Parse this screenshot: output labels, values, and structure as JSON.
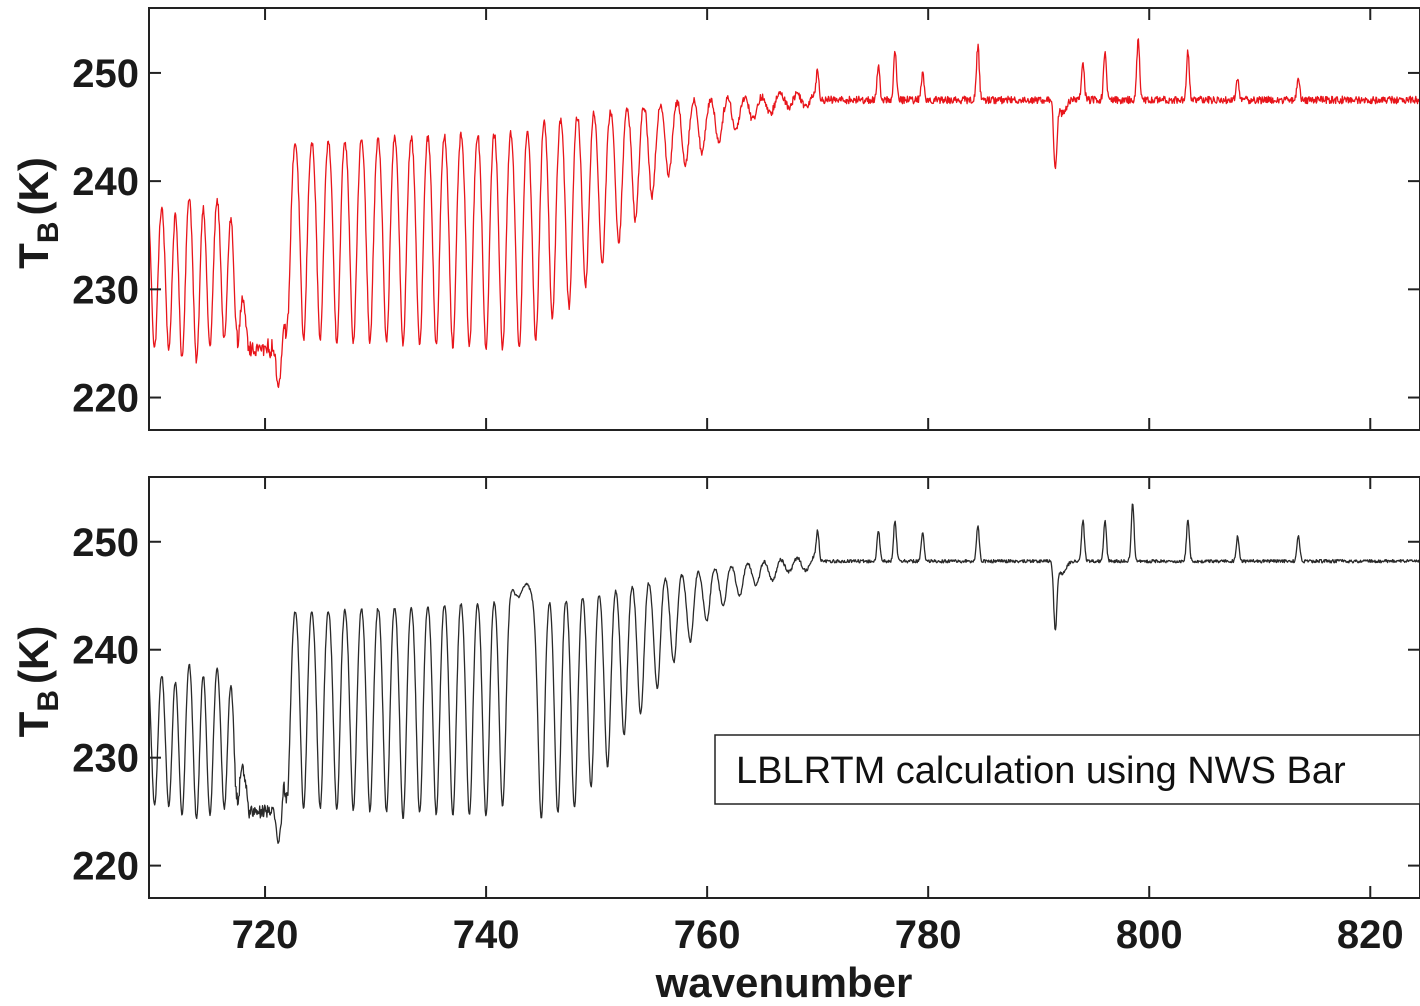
{
  "chart_data": [
    {
      "type": "line",
      "panel": "top",
      "ylabel_main": "T",
      "ylabel_sub": "B",
      "ylabel_unit": "(K)",
      "xlabel": "",
      "xlim": [
        709.5,
        824.5
      ],
      "ylim": [
        217,
        256
      ],
      "yticks": [
        220,
        230,
        240,
        250
      ],
      "xticks": [
        720,
        740,
        760,
        780,
        800,
        820
      ],
      "show_x_tick_labels": false,
      "line_color": "#e8151b",
      "spectrum": {
        "baseline": 247.5,
        "warm_start_x": 770,
        "band_lines": [
          {
            "x": 710.0,
            "min": 224
          },
          {
            "x": 711.3,
            "min": 224
          },
          {
            "x": 712.5,
            "min": 224
          },
          {
            "x": 713.8,
            "min": 224
          },
          {
            "x": 715.0,
            "min": 225
          },
          {
            "x": 716.3,
            "min": 225
          },
          {
            "x": 717.5,
            "min": 225
          },
          {
            "x": 722.0,
            "min": 226
          },
          {
            "x": 723.5,
            "min": 225
          },
          {
            "x": 725.0,
            "min": 225
          },
          {
            "x": 726.5,
            "min": 225
          },
          {
            "x": 728.0,
            "min": 225
          },
          {
            "x": 729.5,
            "min": 225
          },
          {
            "x": 731.0,
            "min": 225
          },
          {
            "x": 732.5,
            "min": 225
          },
          {
            "x": 734.0,
            "min": 225
          },
          {
            "x": 735.5,
            "min": 225
          },
          {
            "x": 737.0,
            "min": 225
          },
          {
            "x": 738.5,
            "min": 225
          },
          {
            "x": 740.0,
            "min": 225
          },
          {
            "x": 741.5,
            "min": 225
          },
          {
            "x": 743.0,
            "min": 225
          },
          {
            "x": 744.5,
            "min": 226
          },
          {
            "x": 746.0,
            "min": 228
          },
          {
            "x": 747.5,
            "min": 229
          },
          {
            "x": 749.0,
            "min": 231
          },
          {
            "x": 750.5,
            "min": 233
          },
          {
            "x": 752.0,
            "min": 235
          },
          {
            "x": 753.5,
            "min": 237
          },
          {
            "x": 755.0,
            "min": 239
          },
          {
            "x": 756.5,
            "min": 241
          },
          {
            "x": 758.0,
            "min": 242
          },
          {
            "x": 759.5,
            "min": 243
          },
          {
            "x": 761.0,
            "min": 244
          },
          {
            "x": 762.5,
            "min": 245
          },
          {
            "x": 764.0,
            "min": 246
          },
          {
            "x": 765.5,
            "min": 246.5
          }
        ],
        "dip_region": {
          "x_from": 718.5,
          "x_to": 721.5,
          "level": 224.5,
          "min": 221
        },
        "spikes": [
          {
            "x": 770.0,
            "peak": 250
          },
          {
            "x": 775.5,
            "peak": 250.5
          },
          {
            "x": 777.0,
            "peak": 252
          },
          {
            "x": 779.5,
            "peak": 250
          },
          {
            "x": 784.5,
            "peak": 252.5
          },
          {
            "x": 794.0,
            "peak": 251
          },
          {
            "x": 796.0,
            "peak": 252
          },
          {
            "x": 799.0,
            "peak": 253
          },
          {
            "x": 803.5,
            "peak": 252
          },
          {
            "x": 808.0,
            "peak": 249.5
          },
          {
            "x": 813.5,
            "peak": 249.5
          }
        ],
        "notches": [
          {
            "x": 791.5,
            "min": 241.5
          }
        ],
        "noise": 0.35
      }
    },
    {
      "type": "line",
      "panel": "bottom",
      "ylabel_main": "T",
      "ylabel_sub": "B",
      "ylabel_unit": "(K)",
      "xlabel": "wavenumber",
      "xlim": [
        709.5,
        824.5
      ],
      "ylim": [
        217,
        256
      ],
      "yticks": [
        220,
        230,
        240,
        250
      ],
      "xticks": [
        720,
        740,
        760,
        780,
        800,
        820
      ],
      "show_x_tick_labels": true,
      "line_color": "#2a2a2a",
      "annotation": "LBLRTM calculation using NWS Bar",
      "spectrum": {
        "baseline": 248.2,
        "warm_start_x": 770,
        "band_lines": [
          {
            "x": 710.0,
            "min": 225
          },
          {
            "x": 711.3,
            "min": 225
          },
          {
            "x": 712.5,
            "min": 225
          },
          {
            "x": 713.8,
            "min": 225
          },
          {
            "x": 715.0,
            "min": 225
          },
          {
            "x": 716.3,
            "min": 225
          },
          {
            "x": 717.5,
            "min": 226
          },
          {
            "x": 722.0,
            "min": 226
          },
          {
            "x": 723.5,
            "min": 225
          },
          {
            "x": 725.0,
            "min": 225
          },
          {
            "x": 726.5,
            "min": 225
          },
          {
            "x": 728.0,
            "min": 225
          },
          {
            "x": 729.5,
            "min": 225
          },
          {
            "x": 731.0,
            "min": 225
          },
          {
            "x": 732.5,
            "min": 224.5
          },
          {
            "x": 734.0,
            "min": 225
          },
          {
            "x": 735.5,
            "min": 225
          },
          {
            "x": 737.0,
            "min": 225
          },
          {
            "x": 738.5,
            "min": 225
          },
          {
            "x": 740.0,
            "min": 225
          },
          {
            "x": 741.5,
            "min": 226
          },
          {
            "x": 745.0,
            "min": 224
          },
          {
            "x": 746.5,
            "min": 224.5
          },
          {
            "x": 748.0,
            "min": 225
          },
          {
            "x": 749.5,
            "min": 227
          },
          {
            "x": 751.0,
            "min": 229
          },
          {
            "x": 752.5,
            "min": 232
          },
          {
            "x": 754.0,
            "min": 234
          },
          {
            "x": 755.5,
            "min": 236.5
          },
          {
            "x": 757.0,
            "min": 239
          },
          {
            "x": 758.5,
            "min": 241
          },
          {
            "x": 760.0,
            "min": 243
          },
          {
            "x": 761.5,
            "min": 244.5
          },
          {
            "x": 763.0,
            "min": 245.5
          },
          {
            "x": 764.5,
            "min": 246.5
          },
          {
            "x": 766.0,
            "min": 247
          }
        ],
        "dip_region": {
          "x_from": 718.5,
          "x_to": 721.5,
          "level": 225,
          "min": 222
        },
        "spikes": [
          {
            "x": 770.0,
            "peak": 251
          },
          {
            "x": 775.5,
            "peak": 251
          },
          {
            "x": 777.0,
            "peak": 252
          },
          {
            "x": 779.5,
            "peak": 251
          },
          {
            "x": 784.5,
            "peak": 251.5
          },
          {
            "x": 794.0,
            "peak": 252
          },
          {
            "x": 796.0,
            "peak": 252
          },
          {
            "x": 798.5,
            "peak": 253.5
          },
          {
            "x": 803.5,
            "peak": 252
          },
          {
            "x": 808.0,
            "peak": 250.5
          },
          {
            "x": 813.5,
            "peak": 250.5
          }
        ],
        "notches": [
          {
            "x": 791.5,
            "min": 242
          }
        ],
        "noise": 0.15
      }
    }
  ]
}
